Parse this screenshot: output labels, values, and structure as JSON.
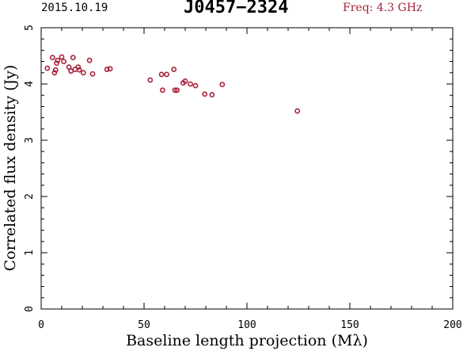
{
  "header": {
    "date": "2015.10.19",
    "source": "J0457−2324",
    "frequency": "Freq: 4.3 GHz"
  },
  "colors": {
    "points": "#a8233a",
    "axes": "#000000",
    "background": "#ffffff"
  },
  "chart_data": {
    "type": "scatter",
    "title": "J0457−2324",
    "xlabel": "Baseline length projection (Mλ)",
    "ylabel": "Correlated flux density (Jy)",
    "xlim": [
      0,
      200
    ],
    "ylim": [
      0,
      5
    ],
    "x_ticks": [
      "0",
      "50",
      "100",
      "150",
      "200"
    ],
    "y_ticks": [
      "0",
      "1",
      "2",
      "3",
      "4",
      "5"
    ],
    "grid": false,
    "marker": "open-circle",
    "series": [
      {
        "points": [
          [
            3.0,
            4.28
          ],
          [
            5.5,
            4.47
          ],
          [
            6.5,
            4.2
          ],
          [
            7.0,
            4.25
          ],
          [
            7.5,
            4.37
          ],
          [
            8.0,
            4.42
          ],
          [
            10.0,
            4.48
          ],
          [
            11.0,
            4.4
          ],
          [
            13.5,
            4.3
          ],
          [
            14.5,
            4.23
          ],
          [
            15.5,
            4.47
          ],
          [
            16.5,
            4.26
          ],
          [
            18.0,
            4.3
          ],
          [
            18.5,
            4.25
          ],
          [
            20.5,
            4.2
          ],
          [
            23.5,
            4.42
          ],
          [
            25.0,
            4.18
          ],
          [
            32.0,
            4.26
          ],
          [
            33.5,
            4.27
          ],
          [
            53.0,
            4.07
          ],
          [
            58.5,
            4.17
          ],
          [
            59.0,
            3.89
          ],
          [
            61.0,
            4.17
          ],
          [
            64.5,
            4.26
          ],
          [
            65.0,
            3.89
          ],
          [
            66.0,
            3.89
          ],
          [
            69.0,
            4.02
          ],
          [
            70.0,
            4.05
          ],
          [
            72.5,
            4.0
          ],
          [
            75.0,
            3.97
          ],
          [
            79.5,
            3.82
          ],
          [
            83.0,
            3.81
          ],
          [
            88.0,
            3.99
          ],
          [
            124.5,
            3.52
          ]
        ]
      }
    ]
  }
}
